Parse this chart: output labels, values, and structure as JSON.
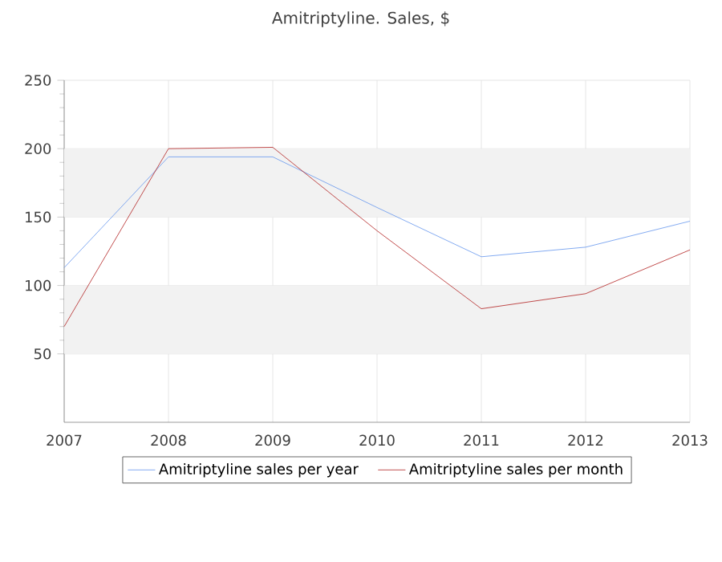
{
  "chart_data": {
    "type": "line",
    "title": "Amitriptyline. Sales, $",
    "x": [
      2007,
      2008,
      2009,
      2010,
      2011,
      2012,
      2013
    ],
    "series": [
      {
        "name": "Amitriptyline sales per year",
        "color": "#6495ed",
        "values": [
          113,
          194,
          194,
          157,
          121,
          128,
          147
        ]
      },
      {
        "name": "Amitriptyline sales per month",
        "color": "#b22222",
        "values": [
          70,
          200,
          201,
          140,
          83,
          94,
          126
        ]
      }
    ],
    "xlim": [
      2007,
      2013
    ],
    "xticks": [
      2007,
      2008,
      2009,
      2010,
      2011,
      2012,
      2013
    ],
    "ylim": [
      0,
      250
    ],
    "yticks": [
      50,
      100,
      150,
      200,
      250
    ],
    "bands": [
      {
        "axis": "y",
        "from": 50,
        "to": 100,
        "color": "#f2f2f2"
      },
      {
        "axis": "y",
        "from": 150,
        "to": 200,
        "color": "#f2f2f2"
      }
    ],
    "grid": true,
    "legend": "bottom",
    "marker": "none",
    "line_style": "solid"
  }
}
